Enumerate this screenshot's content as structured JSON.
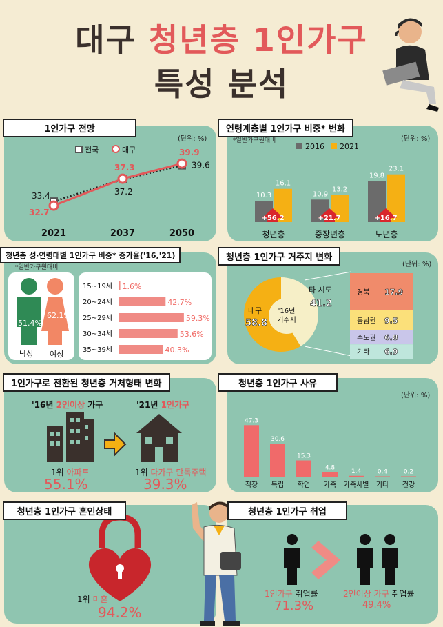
{
  "title": {
    "part1": "대구",
    "part2": "청년층 1인가구",
    "line2": "특성 분석"
  },
  "unit_label": "(단위: %)",
  "note_label": "*일반가구원대비",
  "colors": {
    "panel": "#8fc5b0",
    "accent": "#e2595a",
    "orange": "#f5b014",
    "gray": "#6b6b6b",
    "beige": "#f5ecd3"
  },
  "chart_data": [
    {
      "type": "line",
      "title": "1인가구 전망",
      "categories": [
        "2021",
        "2037",
        "2050"
      ],
      "series": [
        {
          "name": "전국",
          "values": [
            33.4,
            37.2,
            39.6
          ]
        },
        {
          "name": "대구",
          "values": [
            32.7,
            37.3,
            39.9
          ]
        }
      ]
    },
    {
      "type": "bar",
      "title": "연령계층별 1인가구 비중* 변화",
      "categories": [
        "청년층",
        "중장년층",
        "노년층"
      ],
      "series": [
        {
          "name": "2016",
          "values": [
            10.3,
            10.9,
            19.8
          ]
        },
        {
          "name": "2021",
          "values": [
            16.1,
            13.2,
            23.1
          ]
        }
      ],
      "changes": [
        "+56.2",
        "+21.7",
        "+16.7"
      ]
    },
    {
      "type": "bar",
      "title": "청년층 성·연령대별 1인가구 비중* 증가율('16,'21)",
      "gender": [
        {
          "label": "남성",
          "value": "51.4%"
        },
        {
          "label": "여성",
          "value": "62.1%"
        }
      ],
      "categories": [
        "15~19세",
        "20~24세",
        "25~29세",
        "30~34세",
        "35~39세"
      ],
      "values": [
        1.6,
        42.7,
        59.3,
        53.6,
        40.3
      ],
      "value_labels": [
        "1.6%",
        "42.7%",
        "59.3%",
        "53.6%",
        "40.3%"
      ]
    },
    {
      "type": "pie",
      "title": "청년층 1인가구 거주지 변화",
      "center_label": [
        "'16년",
        "거주지"
      ],
      "slices": [
        {
          "name": "대구",
          "value": 58.8
        },
        {
          "name": "타 시도",
          "value": 41.2
        }
      ],
      "breakdown": [
        {
          "name": "경북",
          "value": 17.9
        },
        {
          "name": "동남권",
          "value": 9.5
        },
        {
          "name": "수도권",
          "value": 6.8
        },
        {
          "name": "기타",
          "value": 6.9
        }
      ]
    },
    {
      "type": "bar",
      "title": "청년층 1인가구 사유",
      "categories": [
        "직장",
        "독립",
        "학업",
        "가족",
        "가족사별",
        "기타",
        "건강"
      ],
      "values": [
        47.3,
        30.6,
        15.3,
        4.8,
        1.4,
        0.4,
        0.2
      ]
    }
  ],
  "housing": {
    "title": "1인가구로 전환된 청년층 거처형태 변화",
    "left_head_pre": "'16년 ",
    "left_head_hl": "2인이상",
    "left_head_post": " 가구",
    "right_head_pre": "'21년 ",
    "right_head_hl": "1인가구",
    "left_rank": "1위 ",
    "left_rank_hl": "아파트",
    "left_value": "55.1%",
    "right_rank": "1위 ",
    "right_rank_hl": "다가구 단독주택",
    "right_value": "39.3%"
  },
  "marriage": {
    "title": "청년층 1인가구 혼인상태",
    "rank": "1위 ",
    "rank_hl": "미혼",
    "value": "94.2%"
  },
  "employment": {
    "title": "청년층 1인가구 취업",
    "left_label": "1인가구",
    "left_suffix": " 취업률",
    "left_value": "71.3%",
    "right_label": "2인이상 가구",
    "right_suffix": " 취업률",
    "right_value": "49.4%"
  }
}
